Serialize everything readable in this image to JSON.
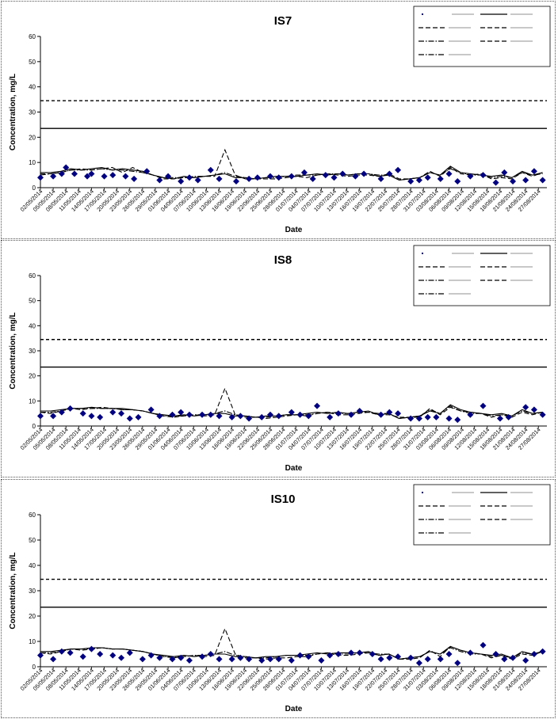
{
  "colors": {
    "marker": "#000080",
    "line": "#000000",
    "frame": "#555555"
  },
  "chart_data": [
    {
      "type": "line",
      "title": "IS7",
      "xlabel": "Date",
      "ylabel": "Concentration, mg/L",
      "ylim": [
        0,
        60
      ],
      "yticks": [
        0,
        10,
        20,
        30,
        40,
        50,
        60
      ],
      "grid": false,
      "legend_position": "top-right",
      "x_tick_labels": [
        "02/05/2014",
        "05/05/2014",
        "08/05/2014",
        "11/05/2014",
        "14/05/2014",
        "17/05/2014",
        "20/05/2014",
        "23/05/2014",
        "26/05/2014",
        "29/05/2014",
        "01/06/2014",
        "04/06/2014",
        "07/06/2014",
        "10/06/2014",
        "13/06/2014",
        "16/06/2014",
        "19/06/2014",
        "22/06/2014",
        "25/06/2014",
        "28/06/2014",
        "01/07/2014",
        "04/07/2014",
        "07/07/2014",
        "10/07/2014",
        "13/07/2014",
        "16/07/2014",
        "19/07/2014",
        "22/07/2014",
        "25/07/2014",
        "28/07/2014",
        "31/07/2014",
        "03/08/2014",
        "06/08/2014",
        "09/08/2014",
        "12/08/2014",
        "15/08/2014",
        "18/08/2014",
        "21/08/2014",
        "24/08/2014",
        "27/08/2014"
      ],
      "reference_lines": [
        {
          "style": "dashed",
          "value": 34.5
        },
        {
          "style": "solid",
          "value": 23.5
        }
      ],
      "scatter": {
        "x": [
          "02/05/2014",
          "05/05/2014",
          "07/05/2014",
          "08/05/2014",
          "10/05/2014",
          "13/05/2014",
          "14/05/2014",
          "17/05/2014",
          "19/05/2014",
          "22/05/2014",
          "24/05/2014",
          "27/05/2014",
          "30/05/2014",
          "01/06/2014",
          "04/06/2014",
          "06/06/2014",
          "08/06/2014",
          "11/06/2014",
          "13/06/2014",
          "17/06/2014",
          "20/06/2014",
          "22/06/2014",
          "25/06/2014",
          "27/06/2014",
          "30/06/2014",
          "03/07/2014",
          "05/07/2014",
          "08/07/2014",
          "10/07/2014",
          "12/07/2014",
          "15/07/2014",
          "17/07/2014",
          "21/07/2014",
          "23/07/2014",
          "25/07/2014",
          "28/07/2014",
          "30/07/2014",
          "01/08/2014",
          "04/08/2014",
          "06/08/2014",
          "08/08/2014",
          "11/08/2014",
          "14/08/2014",
          "17/08/2014",
          "19/08/2014",
          "21/08/2014",
          "24/08/2014",
          "26/08/2014",
          "28/08/2014"
        ],
        "values": [
          4,
          4.5,
          5.5,
          8,
          5.5,
          4.5,
          5.5,
          4.5,
          5,
          4.5,
          3.5,
          6.5,
          3,
          4.5,
          2.5,
          4,
          3,
          7,
          3.5,
          2.5,
          3.5,
          4,
          4.5,
          4,
          4.5,
          6,
          3.5,
          5,
          4,
          5.5,
          4.5,
          5.5,
          3.5,
          5.5,
          7,
          2.5,
          3,
          4,
          3.5,
          5.5,
          2.5,
          4.5,
          5,
          2,
          6,
          2.5,
          3,
          6.5,
          3
        ]
      },
      "series": [
        {
          "style": "dashed",
          "values": [
            5.5,
            5.5,
            6,
            7,
            7.5,
            7,
            7.5,
            8,
            6,
            8,
            6,
            5,
            3.5,
            3.5,
            4,
            4,
            4.5,
            4.5,
            15,
            5,
            3.5,
            3.5,
            3.5,
            3.5,
            4,
            4.5,
            4,
            5,
            5.5,
            5,
            4.5,
            5,
            5,
            4.5,
            5.5,
            3.5,
            3.5,
            4,
            6.5,
            4.5,
            8,
            5.5,
            5,
            5.5,
            3.5,
            4,
            3.5,
            6,
            4.5,
            6
          ]
        },
        {
          "style": "solid",
          "values": [
            6,
            6,
            6.5,
            7.5,
            7,
            7.5,
            8,
            7,
            7.5,
            7,
            6.5,
            5,
            4,
            3.5,
            4.5,
            4,
            4.5,
            5,
            5.5,
            4,
            4,
            3.5,
            4,
            4.5,
            4.5,
            4.5,
            5,
            5.5,
            5,
            5.5,
            5,
            5.5,
            5.5,
            4.5,
            5,
            3,
            3.5,
            4,
            6,
            5,
            8.5,
            6,
            5.5,
            5,
            4.5,
            5,
            4,
            6.5,
            5,
            6
          ]
        },
        {
          "style": "dash-dot",
          "values": [
            5,
            5.5,
            6,
            7,
            7,
            7,
            7.5,
            7,
            7,
            6.5,
            6,
            5,
            4,
            4,
            4,
            4.5,
            4.5,
            5,
            6,
            4.5,
            4,
            3.5,
            4,
            4,
            4.5,
            5,
            5,
            5,
            5.5,
            5.5,
            5,
            5.5,
            5.5,
            5,
            5,
            3,
            3.5,
            4,
            6,
            5,
            7.5,
            6,
            5,
            5,
            4,
            4.5,
            4,
            6,
            5,
            5.5
          ]
        }
      ]
    },
    {
      "type": "line",
      "title": "IS8",
      "xlabel": "Date",
      "ylabel": "Concentration, mg/L",
      "ylim": [
        0,
        60
      ],
      "yticks": [
        0,
        10,
        20,
        30,
        40,
        50,
        60
      ],
      "grid": false,
      "legend_position": "top-right",
      "x_tick_labels": [
        "02/05/2014",
        "05/05/2014",
        "08/05/2014",
        "11/05/2014",
        "14/05/2014",
        "17/05/2014",
        "20/05/2014",
        "23/05/2014",
        "26/05/2014",
        "29/05/2014",
        "01/06/2014",
        "04/06/2014",
        "07/06/2014",
        "10/06/2014",
        "13/06/2014",
        "16/06/2014",
        "19/06/2014",
        "22/06/2014",
        "25/06/2014",
        "28/06/2014",
        "01/07/2014",
        "04/07/2014",
        "07/07/2014",
        "10/07/2014",
        "13/07/2014",
        "16/07/2014",
        "19/07/2014",
        "22/07/2014",
        "25/07/2014",
        "28/07/2014",
        "31/07/2014",
        "03/08/2014",
        "06/08/2014",
        "09/08/2014",
        "12/08/2014",
        "15/08/2014",
        "18/08/2014",
        "21/08/2014",
        "24/08/2014",
        "27/08/2014"
      ],
      "reference_lines": [
        {
          "style": "dashed",
          "value": 34.5
        },
        {
          "style": "solid",
          "value": 23.5
        }
      ],
      "scatter": {
        "x": [
          "02/05/2014",
          "05/05/2014",
          "07/05/2014",
          "09/05/2014",
          "12/05/2014",
          "14/05/2014",
          "16/05/2014",
          "19/05/2014",
          "21/05/2014",
          "23/05/2014",
          "25/05/2014",
          "28/05/2014",
          "30/05/2014",
          "02/06/2014",
          "04/06/2014",
          "06/06/2014",
          "09/06/2014",
          "11/06/2014",
          "13/06/2014",
          "16/06/2014",
          "18/06/2014",
          "20/06/2014",
          "23/06/2014",
          "25/06/2014",
          "27/06/2014",
          "30/06/2014",
          "02/07/2014",
          "04/07/2014",
          "06/07/2014",
          "09/07/2014",
          "11/07/2014",
          "14/07/2014",
          "16/07/2014",
          "21/07/2014",
          "23/07/2014",
          "25/07/2014",
          "28/07/2014",
          "30/07/2014",
          "01/08/2014",
          "03/08/2014",
          "06/08/2014",
          "08/08/2014",
          "11/08/2014",
          "14/08/2014",
          "18/08/2014",
          "20/08/2014",
          "24/08/2014",
          "26/08/2014",
          "28/08/2014"
        ],
        "values": [
          4,
          4,
          5.5,
          7,
          5,
          4,
          3.5,
          5.5,
          5,
          3,
          3.5,
          6.5,
          4,
          4.5,
          5.5,
          4.5,
          4.5,
          4.5,
          4,
          3.5,
          4,
          3,
          3.5,
          4.5,
          4,
          5.5,
          4.5,
          4,
          8,
          3.5,
          5,
          4.5,
          6,
          4.5,
          5.5,
          5,
          3,
          3,
          3.5,
          3.5,
          3,
          2.5,
          4.5,
          8,
          3,
          3.5,
          7.5,
          6.5,
          4.5
        ]
      },
      "series": [
        {
          "style": "dashed",
          "values": [
            5.5,
            5,
            6,
            7,
            6.5,
            7,
            7.5,
            7,
            6.5,
            6.5,
            6,
            5,
            4,
            3.5,
            4,
            4.5,
            4,
            4.5,
            15,
            4.5,
            3.5,
            3.5,
            3,
            3.5,
            4,
            4.5,
            4,
            5,
            5.5,
            4.5,
            4.5,
            5,
            5.5,
            4.5,
            4.5,
            3.5,
            3.5,
            3.5,
            7,
            4.5,
            7.5,
            6,
            5.5,
            5,
            3.5,
            4.5,
            3.5,
            5.5,
            4.5,
            5.5
          ]
        },
        {
          "style": "solid",
          "values": [
            6,
            6,
            6.5,
            7,
            7,
            7.5,
            7,
            7,
            7,
            6.5,
            6,
            5,
            4.5,
            4,
            4.5,
            4,
            4.5,
            5,
            5,
            4,
            4,
            3.5,
            4,
            4,
            4.5,
            4.5,
            5,
            5.5,
            5,
            5.5,
            5,
            5.5,
            6,
            4.5,
            5,
            3,
            3.5,
            4,
            6,
            5,
            8.5,
            6.5,
            5.5,
            5,
            4.5,
            5,
            4,
            6.5,
            5,
            5.5
          ]
        },
        {
          "style": "dash-dot",
          "values": [
            5.5,
            5.5,
            6,
            7,
            7,
            7,
            7,
            7,
            6.5,
            6.5,
            6,
            5,
            4,
            4,
            4,
            4.5,
            4.5,
            5,
            6,
            4.5,
            4,
            3.5,
            3.5,
            4,
            4.5,
            4.5,
            4.5,
            5,
            5.5,
            5,
            5,
            5.5,
            5.5,
            5,
            5,
            3,
            3.5,
            4,
            6.5,
            5,
            8,
            6,
            5,
            5,
            4,
            4.5,
            4,
            6,
            5,
            5.5
          ]
        }
      ]
    },
    {
      "type": "line",
      "title": "IS10",
      "xlabel": "Date",
      "ylabel": "Concentration, mg/L",
      "ylim": [
        0,
        60
      ],
      "yticks": [
        0,
        10,
        20,
        30,
        40,
        50,
        60
      ],
      "grid": false,
      "legend_position": "top-right",
      "x_tick_labels": [
        "02/05/2014",
        "05/05/2014",
        "08/05/2014",
        "11/05/2014",
        "14/05/2014",
        "17/05/2014",
        "20/05/2014",
        "23/05/2014",
        "26/05/2014",
        "29/05/2014",
        "01/06/2014",
        "04/06/2014",
        "07/06/2014",
        "10/06/2014",
        "13/06/2014",
        "16/06/2014",
        "19/06/2014",
        "22/06/2014",
        "25/06/2014",
        "28/06/2014",
        "01/07/2014",
        "04/07/2014",
        "07/07/2014",
        "10/07/2014",
        "13/07/2014",
        "16/07/2014",
        "19/07/2014",
        "22/07/2014",
        "25/07/2014",
        "28/07/2014",
        "31/07/2014",
        "03/08/2014",
        "06/08/2014",
        "09/08/2014",
        "12/08/2014",
        "15/08/2014",
        "18/08/2014",
        "21/08/2014",
        "24/08/2014",
        "27/08/2014"
      ],
      "reference_lines": [
        {
          "style": "dashed",
          "value": 34.5
        },
        {
          "style": "solid",
          "value": 23.5
        }
      ],
      "scatter": {
        "x": [
          "02/05/2014",
          "05/05/2014",
          "07/05/2014",
          "09/05/2014",
          "12/05/2014",
          "14/05/2014",
          "16/05/2014",
          "19/05/2014",
          "21/05/2014",
          "23/05/2014",
          "26/05/2014",
          "28/05/2014",
          "30/05/2014",
          "02/06/2014",
          "04/06/2014",
          "06/06/2014",
          "09/06/2014",
          "11/06/2014",
          "13/06/2014",
          "16/06/2014",
          "18/06/2014",
          "20/06/2014",
          "23/06/2014",
          "25/06/2014",
          "27/06/2014",
          "30/06/2014",
          "02/07/2014",
          "04/07/2014",
          "07/07/2014",
          "09/07/2014",
          "11/07/2014",
          "14/07/2014",
          "16/07/2014",
          "19/07/2014",
          "21/07/2014",
          "23/07/2014",
          "25/07/2014",
          "28/07/2014",
          "30/07/2014",
          "01/08/2014",
          "04/08/2014",
          "06/08/2014",
          "08/08/2014",
          "11/08/2014",
          "14/08/2014",
          "17/08/2014",
          "19/08/2014",
          "21/08/2014",
          "24/08/2014",
          "26/08/2014",
          "28/08/2014"
        ],
        "values": [
          4.5,
          3,
          6,
          5.5,
          4,
          7,
          5,
          4.5,
          3.5,
          5.5,
          3,
          4.5,
          3.5,
          3,
          3.5,
          2.5,
          4,
          5,
          3,
          3,
          3.5,
          3,
          2.5,
          3,
          3,
          2.5,
          4.5,
          4,
          2.5,
          4.5,
          5,
          5.5,
          5.5,
          5,
          3,
          3.5,
          4,
          3.5,
          1.5,
          3,
          3,
          5,
          1.5,
          5.5,
          8.5,
          5,
          3,
          3.5,
          2.5,
          5,
          6
        ]
      },
      "series": [
        {
          "style": "dashed",
          "values": [
            5.5,
            5,
            6,
            7,
            6.5,
            7,
            7.5,
            7,
            7,
            6.5,
            6,
            5,
            4,
            3.5,
            4,
            4.5,
            4,
            4.5,
            15,
            5,
            3.5,
            3.5,
            3,
            3.5,
            3.5,
            4,
            4,
            5,
            5.5,
            4.5,
            4.5,
            5,
            5.5,
            4.5,
            5,
            3,
            3,
            3.5,
            6.5,
            4,
            8,
            6.5,
            5.5,
            5,
            3.5,
            4.5,
            3,
            5,
            4.5,
            6
          ]
        },
        {
          "style": "solid",
          "values": [
            6,
            6,
            6.5,
            7,
            7,
            7.5,
            7.5,
            7,
            7,
            6.5,
            6,
            5,
            4.5,
            4,
            4.5,
            4,
            4.5,
            5,
            5,
            4,
            4,
            3.5,
            4,
            4,
            4.5,
            4.5,
            5,
            5.5,
            5,
            5.5,
            5.5,
            5.5,
            6,
            4.5,
            5,
            3,
            3.5,
            4,
            6,
            5,
            8,
            6.5,
            5.5,
            5,
            4.5,
            5,
            3.5,
            6,
            5,
            6
          ]
        },
        {
          "style": "dash-dot",
          "values": [
            5.5,
            5.5,
            6,
            7,
            7,
            7,
            7.5,
            7,
            7,
            6.5,
            6,
            5,
            4,
            4,
            4,
            4.5,
            4.5,
            5,
            6,
            4.5,
            4,
            3.5,
            3.5,
            4,
            4.5,
            4.5,
            4.5,
            5,
            5.5,
            5,
            5,
            5.5,
            5.5,
            5,
            5,
            3,
            3.5,
            4,
            6,
            5,
            7.5,
            6,
            5,
            5,
            4,
            4.5,
            3.5,
            5.5,
            5,
            6
          ]
        }
      ]
    }
  ]
}
